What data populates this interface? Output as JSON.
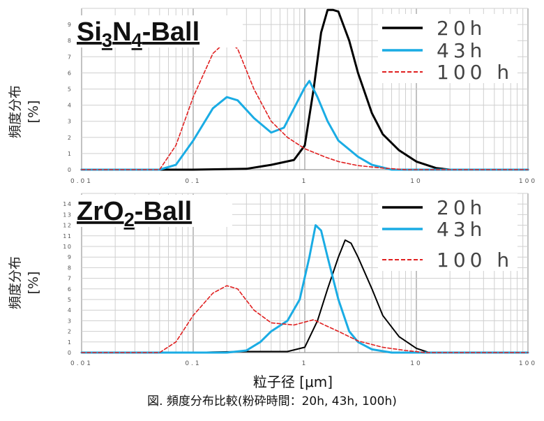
{
  "figure": {
    "xlabel": "粒子径 [μm]",
    "caption": "図. 頻度分布比較(粉砕時間：20h, 43h, 100h)"
  },
  "chart_data": [
    {
      "type": "line",
      "title_main": "Si",
      "title_sub1": "3",
      "title_mid": "N",
      "title_sub2": "4",
      "title_end": "-Ball",
      "ylabel_line1": "頻度分布",
      "ylabel_line2": "[%]",
      "xscale": "log",
      "xlim": [
        0.01,
        100
      ],
      "ylim": [
        0,
        10
      ],
      "x_ticks": [
        "0.01",
        "0.1",
        "1",
        "10",
        "100"
      ],
      "y_ticks": [
        "0",
        "1",
        "2",
        "3",
        "4",
        "5",
        "6",
        "7",
        "8",
        "9"
      ],
      "legend_position": "top-right",
      "series": [
        {
          "name": "20h",
          "color": "#000000",
          "dash": "solid",
          "points": [
            [
              0.01,
              0
            ],
            [
              0.1,
              0
            ],
            [
              0.3,
              0.05
            ],
            [
              0.5,
              0.3
            ],
            [
              0.8,
              0.6
            ],
            [
              1.0,
              1.5
            ],
            [
              1.2,
              5
            ],
            [
              1.4,
              8.5
            ],
            [
              1.6,
              9.9
            ],
            [
              1.8,
              9.9
            ],
            [
              2.0,
              9.8
            ],
            [
              2.5,
              8
            ],
            [
              3,
              6
            ],
            [
              4,
              3.5
            ],
            [
              5,
              2.2
            ],
            [
              7,
              1.2
            ],
            [
              10,
              0.5
            ],
            [
              15,
              0.1
            ],
            [
              20,
              0
            ],
            [
              100,
              0
            ]
          ]
        },
        {
          "name": "43h",
          "color": "#1AACE4",
          "dash": "solid",
          "points": [
            [
              0.01,
              0
            ],
            [
              0.05,
              0
            ],
            [
              0.07,
              0.3
            ],
            [
              0.1,
              1.8
            ],
            [
              0.15,
              3.8
            ],
            [
              0.2,
              4.5
            ],
            [
              0.25,
              4.3
            ],
            [
              0.35,
              3.2
            ],
            [
              0.5,
              2.3
            ],
            [
              0.65,
              2.6
            ],
            [
              0.8,
              3.8
            ],
            [
              1.0,
              5.1
            ],
            [
              1.1,
              5.5
            ],
            [
              1.3,
              4.5
            ],
            [
              1.6,
              3
            ],
            [
              2,
              1.8
            ],
            [
              3,
              0.8
            ],
            [
              4,
              0.3
            ],
            [
              6,
              0
            ],
            [
              100,
              0
            ]
          ]
        },
        {
          "name": "100 h",
          "color": "#E02020",
          "dash": "dashed",
          "points": [
            [
              0.01,
              0
            ],
            [
              0.05,
              0
            ],
            [
              0.07,
              1.5
            ],
            [
              0.1,
              4.5
            ],
            [
              0.15,
              7.2
            ],
            [
              0.2,
              8.0
            ],
            [
              0.25,
              7.5
            ],
            [
              0.35,
              5.0
            ],
            [
              0.5,
              3.0
            ],
            [
              0.7,
              2.0
            ],
            [
              1.0,
              1.3
            ],
            [
              1.5,
              0.8
            ],
            [
              2,
              0.5
            ],
            [
              3,
              0.25
            ],
            [
              5,
              0.1
            ],
            [
              8,
              0
            ],
            [
              100,
              0
            ]
          ]
        }
      ]
    },
    {
      "type": "line",
      "title_main": "ZrO",
      "title_sub1": "2",
      "title_mid": "",
      "title_sub2": "",
      "title_end": "-Ball",
      "ylabel_line1": "頻度分布",
      "ylabel_line2": "[%]",
      "xscale": "log",
      "xlim": [
        0.01,
        100
      ],
      "ylim": [
        0,
        15
      ],
      "x_ticks": [
        "0.01",
        "0.1",
        "1",
        "10",
        "100"
      ],
      "y_ticks": [
        "0",
        "1",
        "2",
        "3",
        "4",
        "5",
        "6",
        "7",
        "8",
        "9",
        "10",
        "11",
        "12",
        "13",
        "14"
      ],
      "legend_position": "top-right",
      "series": [
        {
          "name": "20h",
          "color": "#000000",
          "dash": "solid",
          "points": [
            [
              0.01,
              0
            ],
            [
              0.1,
              0
            ],
            [
              0.15,
              0.05
            ],
            [
              0.3,
              0.1
            ],
            [
              0.7,
              0.1
            ],
            [
              1.0,
              0.5
            ],
            [
              1.3,
              3
            ],
            [
              1.6,
              6
            ],
            [
              2.0,
              9
            ],
            [
              2.3,
              10.6
            ],
            [
              2.6,
              10.3
            ],
            [
              3,
              9
            ],
            [
              4,
              6
            ],
            [
              5,
              3.5
            ],
            [
              7,
              1.5
            ],
            [
              10,
              0.4
            ],
            [
              13,
              0
            ],
            [
              100,
              0
            ]
          ]
        },
        {
          "name": "43h",
          "color": "#1AACE4",
          "dash": "solid",
          "points": [
            [
              0.01,
              0
            ],
            [
              0.2,
              0
            ],
            [
              0.3,
              0.2
            ],
            [
              0.4,
              1
            ],
            [
              0.5,
              2
            ],
            [
              0.7,
              3
            ],
            [
              0.9,
              5
            ],
            [
              1.1,
              9
            ],
            [
              1.25,
              12
            ],
            [
              1.4,
              11.5
            ],
            [
              1.6,
              9
            ],
            [
              2,
              5
            ],
            [
              2.5,
              2
            ],
            [
              3,
              1
            ],
            [
              4,
              0.3
            ],
            [
              6,
              0
            ],
            [
              100,
              0
            ]
          ]
        },
        {
          "name": "100 h",
          "color": "#E02020",
          "dash": "dashed",
          "points": [
            [
              0.01,
              0
            ],
            [
              0.05,
              0
            ],
            [
              0.07,
              1
            ],
            [
              0.1,
              3.5
            ],
            [
              0.15,
              5.6
            ],
            [
              0.2,
              6.3
            ],
            [
              0.25,
              6
            ],
            [
              0.35,
              4
            ],
            [
              0.5,
              2.8
            ],
            [
              0.8,
              2.6
            ],
            [
              1.2,
              3.1
            ],
            [
              1.5,
              2.6
            ],
            [
              2,
              2
            ],
            [
              3,
              1.1
            ],
            [
              5,
              0.5
            ],
            [
              8,
              0.2
            ],
            [
              12,
              0
            ],
            [
              100,
              0
            ]
          ]
        }
      ]
    }
  ]
}
